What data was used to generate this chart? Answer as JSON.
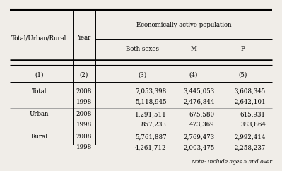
{
  "title": "Economically active population",
  "col1_header": "Total/Urban/Rural",
  "col2_header": "Year",
  "sub_headers": [
    "Both sexes",
    "M",
    "F"
  ],
  "col_numbers": [
    "(1)",
    "(2)",
    "(3)",
    "(4)",
    "(5)"
  ],
  "rows": [
    {
      "group": "Total",
      "year": "2008",
      "both": "7,053,398",
      "m": "3,445,053",
      "f": "3,608,345"
    },
    {
      "group": "",
      "year": "1998",
      "both": "5,118,945",
      "m": "2,476,844",
      "f": "2,642,101"
    },
    {
      "group": "Urban",
      "year": "2008",
      "both": "1,291,511",
      "m": "675,580",
      "f": "615,931"
    },
    {
      "group": "",
      "year": "1998",
      "both": "857,233",
      "m": "473,369",
      "f": "383,864"
    },
    {
      "group": "Rural",
      "year": "2008",
      "both": "5,761,887",
      "m": "2,769,473",
      "f": "2,992,414"
    },
    {
      "group": "",
      "year": "1998",
      "both": "4,261,712",
      "m": "2,003,475",
      "f": "2,258,237"
    }
  ],
  "note": "Note: Include ages 5 and over",
  "bg_color": "#f0ede8"
}
